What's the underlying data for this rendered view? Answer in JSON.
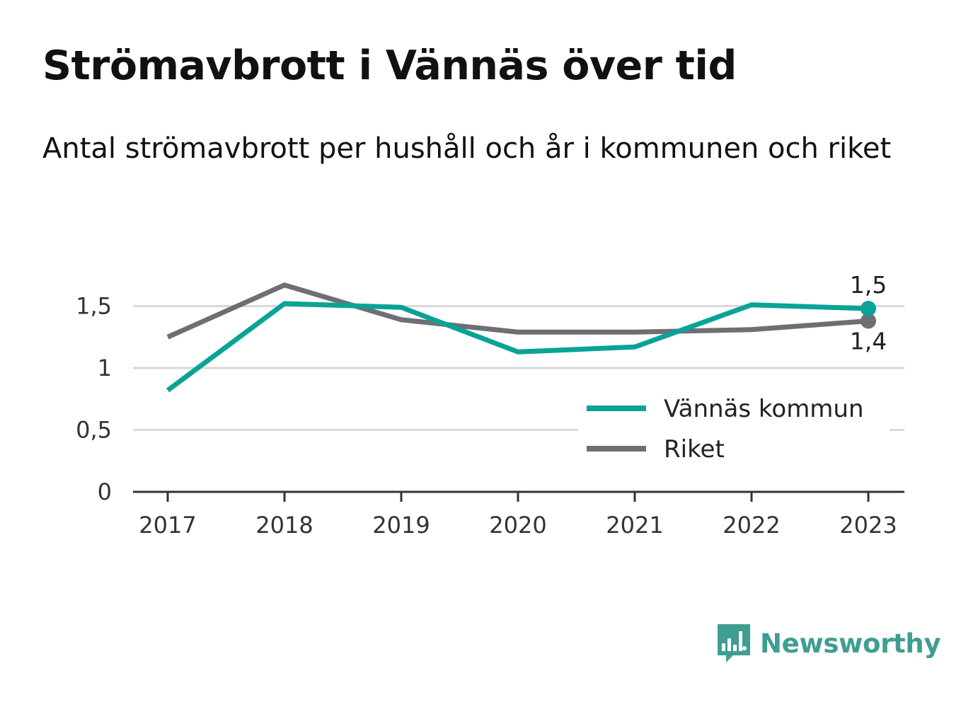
{
  "title": "Strömavbrott i Vännäs över tid",
  "subtitle": "Antal strömavbrott per hushåll och år i kommunen och riket",
  "brand": {
    "name": "Newsworthy",
    "icon": "newsworthy-logo-icon",
    "color": "#3f9d92"
  },
  "chart_data": {
    "type": "line",
    "x": [
      "2017",
      "2018",
      "2019",
      "2020",
      "2021",
      "2022",
      "2023"
    ],
    "y_ticks": [
      {
        "value": 0,
        "label": "0"
      },
      {
        "value": 0.5,
        "label": "0,5"
      },
      {
        "value": 1,
        "label": "1"
      },
      {
        "value": 1.5,
        "label": "1,5"
      }
    ],
    "ylim": [
      0,
      1.85
    ],
    "grid": true,
    "legend_position": "lower-right",
    "series": [
      {
        "name": "Vännäs kommun",
        "color": "#0aa396",
        "values": [
          0.82,
          1.52,
          1.49,
          1.13,
          1.17,
          1.51,
          1.48
        ],
        "end_label": "1,5",
        "end_label_position": "above"
      },
      {
        "name": "Riket",
        "color": "#6f6e75",
        "values": [
          1.25,
          1.67,
          1.39,
          1.29,
          1.29,
          1.31,
          1.38
        ],
        "end_label": "1,4",
        "end_label_position": "below"
      }
    ]
  }
}
